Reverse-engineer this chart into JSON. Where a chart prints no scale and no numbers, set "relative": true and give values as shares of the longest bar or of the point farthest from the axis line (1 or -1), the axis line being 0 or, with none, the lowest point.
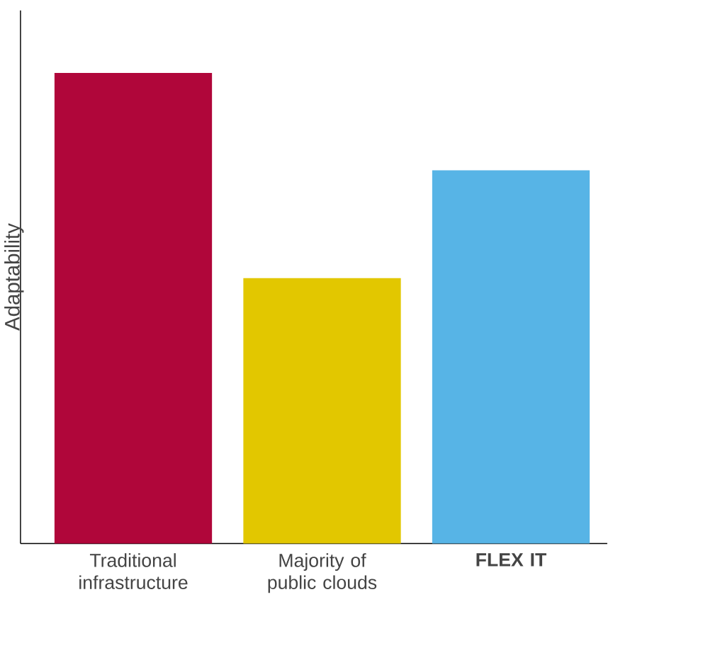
{
  "chart_data": {
    "type": "bar",
    "relative": true,
    "ylabel": "Adaptability",
    "categories": [
      "Traditional infrastructure",
      "Majority of public clouds",
      "**FLEX IT**"
    ],
    "values": [
      1,
      0.564,
      0.793
    ],
    "colors": [
      "#b0063a",
      "#e2c700",
      "#57b4e6"
    ]
  }
}
